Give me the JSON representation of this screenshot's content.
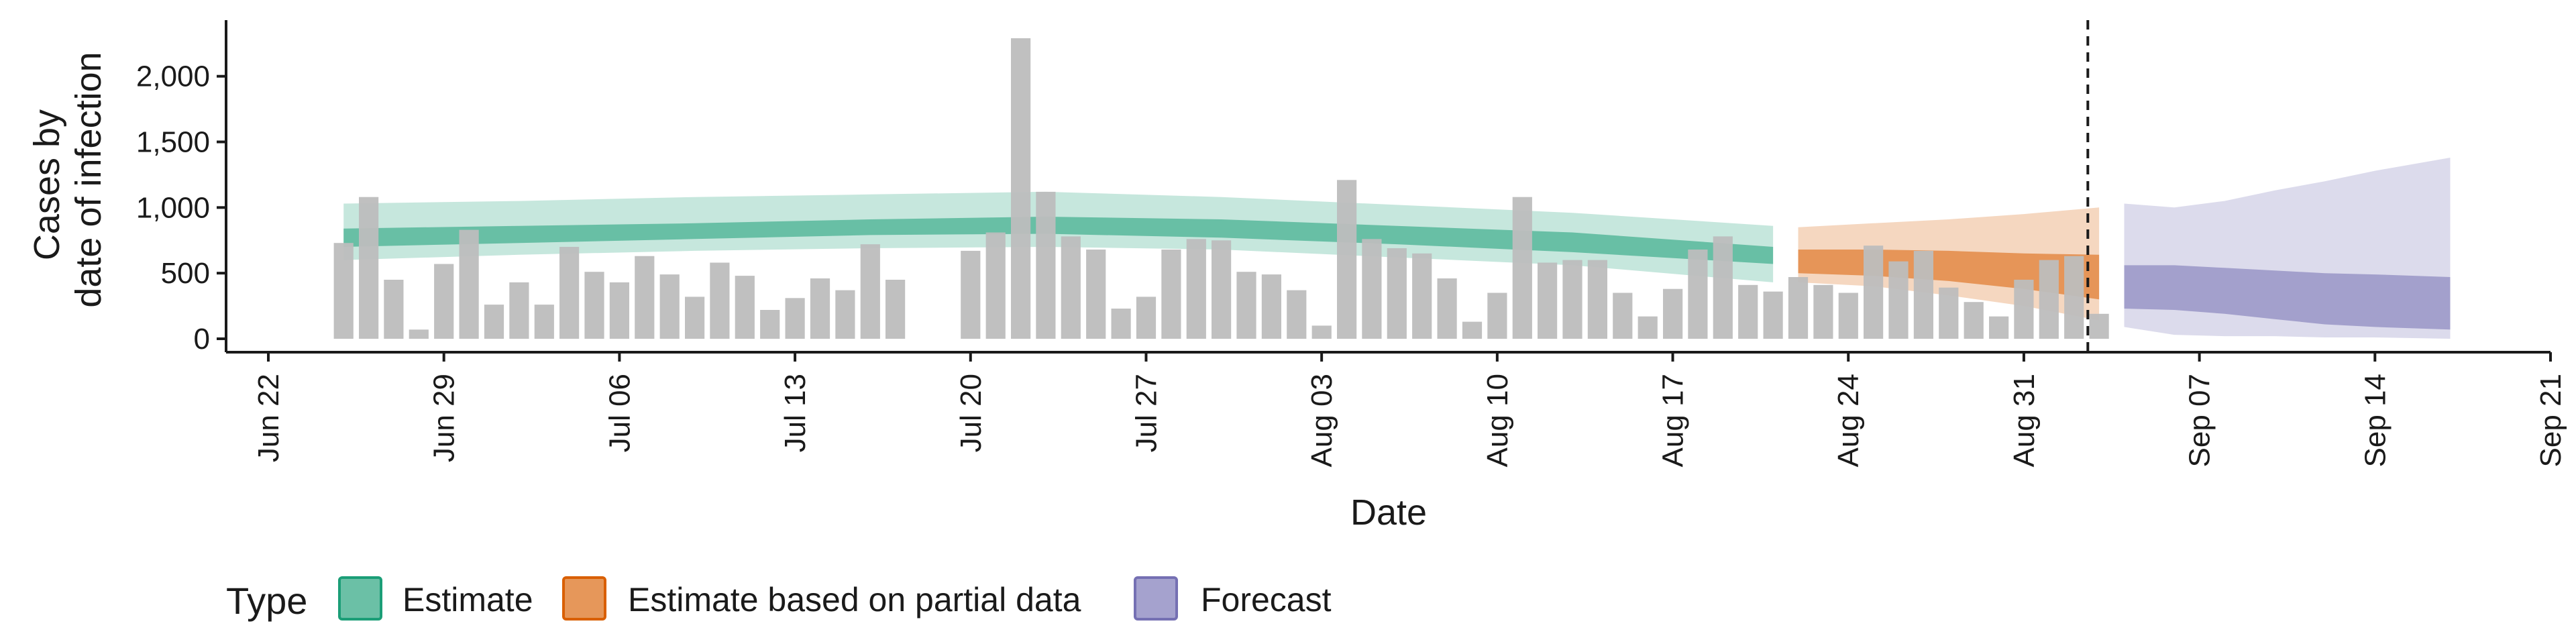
{
  "chart_data": {
    "type": "bar",
    "xlabel": "Date",
    "ylabel": [
      "Cases by",
      "date of infection"
    ],
    "ylim": [
      0,
      2400
    ],
    "xlim": [
      "2020-06-20",
      "2020-09-21"
    ],
    "y_ticks": [
      0,
      500,
      1000,
      1500,
      2000
    ],
    "y_tick_labels": [
      "0",
      "500",
      "1,000",
      "1,500",
      "2,000"
    ],
    "x_ticks": [
      "2020-06-22",
      "2020-06-29",
      "2020-07-06",
      "2020-07-13",
      "2020-07-20",
      "2020-07-27",
      "2020-08-03",
      "2020-08-10",
      "2020-08-17",
      "2020-08-24",
      "2020-08-31",
      "2020-09-07",
      "2020-09-14",
      "2020-09-21"
    ],
    "x_tick_labels": [
      "Jun 22",
      "Jun 29",
      "Jul 06",
      "Jul 13",
      "Jul 20",
      "Jul 27",
      "Aug 03",
      "Aug 10",
      "Aug 17",
      "Aug 24",
      "Aug 31",
      "Sep 07",
      "Sep 14",
      "Sep 21"
    ],
    "vline_date": "2020-09-02",
    "grid": false,
    "legend": {
      "title": "Type",
      "position": "bottom",
      "items": [
        {
          "label": "Estimate",
          "color": "#1b9e77"
        },
        {
          "label": "Estimate based on partial data",
          "color": "#d95f02"
        },
        {
          "label": "Forecast",
          "color": "#7570b3"
        }
      ]
    },
    "reported_cases": {
      "color": "#bdbdbd",
      "dates": [
        "2020-06-25",
        "2020-06-26",
        "2020-06-27",
        "2020-06-28",
        "2020-06-29",
        "2020-06-30",
        "2020-07-01",
        "2020-07-02",
        "2020-07-03",
        "2020-07-04",
        "2020-07-05",
        "2020-07-06",
        "2020-07-07",
        "2020-07-08",
        "2020-07-09",
        "2020-07-10",
        "2020-07-11",
        "2020-07-12",
        "2020-07-13",
        "2020-07-14",
        "2020-07-15",
        "2020-07-16",
        "2020-07-17",
        "2020-07-20",
        "2020-07-21",
        "2020-07-22",
        "2020-07-23",
        "2020-07-24",
        "2020-07-25",
        "2020-07-26",
        "2020-07-27",
        "2020-07-28",
        "2020-07-29",
        "2020-07-30",
        "2020-07-31",
        "2020-08-01",
        "2020-08-02",
        "2020-08-03",
        "2020-08-04",
        "2020-08-05",
        "2020-08-06",
        "2020-08-07",
        "2020-08-08",
        "2020-08-09",
        "2020-08-10",
        "2020-08-11",
        "2020-08-12",
        "2020-08-13",
        "2020-08-14",
        "2020-08-15",
        "2020-08-16",
        "2020-08-17",
        "2020-08-18",
        "2020-08-19",
        "2020-08-20",
        "2020-08-21",
        "2020-08-22",
        "2020-08-23",
        "2020-08-24",
        "2020-08-25",
        "2020-08-26",
        "2020-08-27",
        "2020-08-28",
        "2020-08-29",
        "2020-08-30",
        "2020-08-31",
        "2020-09-01",
        "2020-09-02",
        "2020-09-03"
      ],
      "values": [
        730,
        1080,
        450,
        70,
        570,
        830,
        260,
        430,
        260,
        700,
        510,
        430,
        630,
        490,
        320,
        580,
        480,
        220,
        310,
        460,
        370,
        720,
        450,
        670,
        810,
        2290,
        1120,
        780,
        680,
        230,
        320,
        680,
        760,
        750,
        510,
        490,
        370,
        100,
        1210,
        760,
        690,
        650,
        460,
        130,
        350,
        1080,
        580,
        600,
        600,
        350,
        170,
        380,
        680,
        780,
        410,
        360,
        470,
        410,
        350,
        710,
        590,
        670,
        390,
        280,
        170,
        450,
        600,
        630,
        190
      ]
    },
    "series": [
      {
        "name": "Estimate",
        "color": "#1b9e77",
        "x": [
          "2020-06-25",
          "2020-07-02",
          "2020-07-09",
          "2020-07-16",
          "2020-07-23",
          "2020-07-30",
          "2020-08-06",
          "2020-08-13",
          "2020-08-21"
        ],
        "lower_90": [
          600,
          640,
          670,
          690,
          700,
          680,
          620,
          560,
          430
        ],
        "lower_50": [
          700,
          730,
          760,
          790,
          800,
          770,
          720,
          660,
          570
        ],
        "upper_50": [
          840,
          860,
          880,
          910,
          930,
          910,
          860,
          810,
          700
        ],
        "upper_90": [
          1030,
          1050,
          1080,
          1100,
          1120,
          1080,
          1020,
          960,
          860
        ]
      },
      {
        "name": "Estimate based on partial data",
        "color": "#d95f02",
        "x": [
          "2020-08-22",
          "2020-08-25",
          "2020-08-28",
          "2020-08-31",
          "2020-09-03"
        ],
        "lower_90": [
          430,
          400,
          330,
          250,
          140
        ],
        "lower_50": [
          500,
          480,
          440,
          380,
          300
        ],
        "upper_50": [
          680,
          680,
          670,
          650,
          640
        ],
        "upper_90": [
          850,
          880,
          910,
          950,
          1000
        ]
      },
      {
        "name": "Forecast",
        "color": "#7570b3",
        "x": [
          "2020-09-04",
          "2020-09-06",
          "2020-09-08",
          "2020-09-10",
          "2020-09-12",
          "2020-09-14",
          "2020-09-17"
        ],
        "lower_90": [
          90,
          30,
          20,
          20,
          10,
          10,
          0
        ],
        "lower_50": [
          230,
          220,
          190,
          150,
          110,
          90,
          70
        ],
        "upper_50": [
          560,
          560,
          540,
          520,
          500,
          490,
          470
        ],
        "upper_90": [
          1030,
          1000,
          1050,
          1130,
          1200,
          1280,
          1380
        ]
      }
    ]
  }
}
